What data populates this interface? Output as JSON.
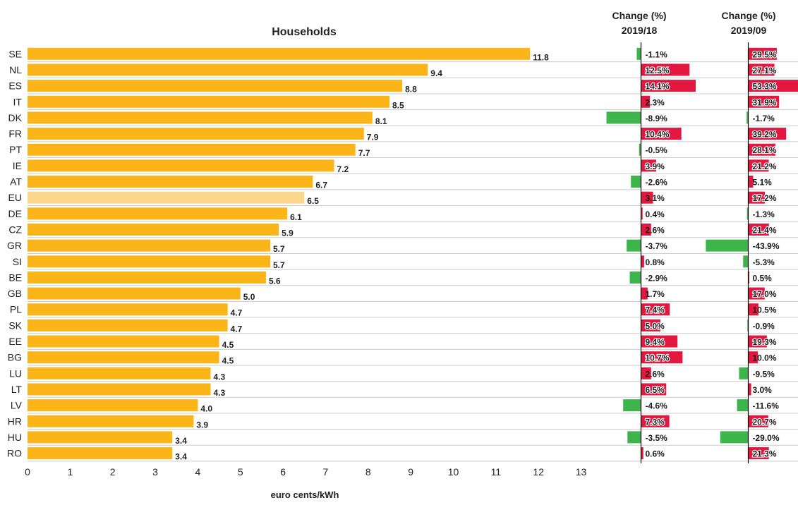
{
  "chart_data": {
    "type": "bar",
    "orientation": "horizontal",
    "title": "Households",
    "xlabel": "euro cents/kWh",
    "xlim": [
      0,
      13
    ],
    "x_ticks": [
      0,
      1,
      2,
      3,
      4,
      5,
      6,
      7,
      8,
      9,
      10,
      11,
      12,
      13
    ],
    "categories": [
      "SE",
      "NL",
      "ES",
      "IT",
      "DK",
      "FR",
      "PT",
      "IE",
      "AT",
      "EU",
      "DE",
      "CZ",
      "GR",
      "SI",
      "BE",
      "GB",
      "PL",
      "SK",
      "EE",
      "BG",
      "LU",
      "LT",
      "LV",
      "HR",
      "HU",
      "RO"
    ],
    "values": [
      11.8,
      9.4,
      8.8,
      8.5,
      8.1,
      7.9,
      7.7,
      7.2,
      6.7,
      6.5,
      6.1,
      5.9,
      5.7,
      5.7,
      5.6,
      5.0,
      4.7,
      4.7,
      4.5,
      4.5,
      4.3,
      4.3,
      4.0,
      3.9,
      3.4,
      3.4
    ],
    "value_labels": [
      "11.8",
      "9.4",
      "8.8",
      "8.5",
      "8.1",
      "7.9",
      "7.7",
      "7.2",
      "6.7",
      "6.5",
      "6.1",
      "5.9",
      "5.7",
      "5.7",
      "5.6",
      "5.0",
      "4.7",
      "4.7",
      "4.5",
      "4.5",
      "4.3",
      "4.3",
      "4.0",
      "3.9",
      "3.4",
      "3.4"
    ],
    "highlight_category": "EU",
    "change_2019_18": {
      "header": [
        "Change (%)",
        "2019/18"
      ],
      "values": [
        -1.1,
        12.5,
        14.1,
        2.3,
        -8.9,
        10.4,
        -0.5,
        3.9,
        -2.6,
        3.1,
        0.4,
        2.6,
        -3.7,
        0.8,
        -2.9,
        1.7,
        7.4,
        5.0,
        9.4,
        10.7,
        2.6,
        6.5,
        -4.6,
        7.3,
        -3.5,
        0.6
      ],
      "labels": [
        "-1.1%",
        "12.5%",
        "14.1%",
        "2.3%",
        "-8.9%",
        "10.4%",
        "-0.5%",
        "3.9%",
        "-2.6%",
        "3.1%",
        "0.4%",
        "2.6%",
        "-3.7%",
        "0.8%",
        "-2.9%",
        "1.7%",
        "7.4%",
        "5.0%",
        "9.4%",
        "10.7%",
        "2.6%",
        "6.5%",
        "-4.6%",
        "7.3%",
        "-3.5%",
        "0.6%"
      ]
    },
    "change_2019_09": {
      "header": [
        "Change (%)",
        "2019/09"
      ],
      "values": [
        29.5,
        27.1,
        53.3,
        31.9,
        -1.7,
        39.2,
        28.1,
        21.2,
        5.1,
        17.2,
        -1.3,
        21.4,
        -43.9,
        -5.3,
        0.5,
        17.0,
        10.5,
        -0.9,
        19.3,
        10.0,
        -9.5,
        3.0,
        -11.6,
        20.7,
        -29.0,
        21.3
      ],
      "labels": [
        "29.5%",
        "27.1%",
        "53.3%",
        "31.9%",
        "-1.7%",
        "39.2%",
        "28.1%",
        "21.2%",
        "5.1%",
        "17.2%",
        "-1.3%",
        "21.4%",
        "-43.9%",
        "-5.3%",
        "0.5%",
        "17.0%",
        "10.5%",
        "-0.9%",
        "19.3%",
        "10.0%",
        "-9.5%",
        "3.0%",
        "-11.6%",
        "20.7%",
        "-29.0%",
        "21.3%"
      ]
    },
    "grid": "horizontal separators",
    "colors": {
      "bar": "#FBB519",
      "highlight_bar": "#FCD78D",
      "increase": "#E3173F",
      "decrease": "#3DB54A",
      "separator": "#CCCCCC",
      "axis": "#000000",
      "text": "#222222"
    }
  }
}
